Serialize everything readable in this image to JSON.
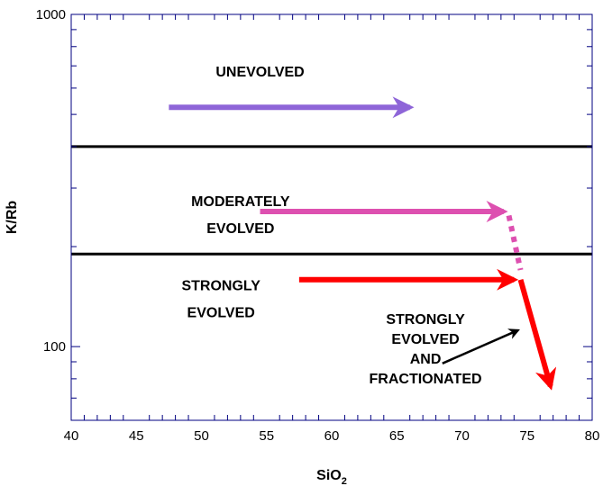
{
  "chart_data": {
    "type": "line",
    "title": "",
    "xlabel": {
      "main": "SiO",
      "subscript": "2"
    },
    "ylabel": "K/Rb",
    "xlim": [
      40,
      80
    ],
    "ylim": [
      60,
      1000
    ],
    "yscale": "log",
    "grid": false,
    "x_ticks": [
      "40",
      "45",
      "50",
      "55",
      "60",
      "65",
      "70",
      "75",
      "80"
    ],
    "y_ticks": [
      "100",
      "1000"
    ],
    "boundaries": [
      {
        "y": 400,
        "color": "#000000"
      },
      {
        "y": 190,
        "color": "#000000"
      }
    ],
    "fields": [
      {
        "lines": [
          "UNEVOLVED"
        ],
        "x": 54.5,
        "y": 650
      },
      {
        "lines": [
          "MODERATELY",
          "EVOLVED"
        ],
        "x": 53,
        "y": 265
      },
      {
        "lines": [
          "STRONGLY",
          "EVOLVED"
        ],
        "x": 51.5,
        "y": 148
      }
    ],
    "series": [
      {
        "color": "#8e65d8",
        "points": [
          [
            47.5,
            525
          ],
          [
            66,
            525
          ]
        ],
        "style": "arrow"
      },
      {
        "color": "#dd50b0",
        "points": [
          [
            54.5,
            255
          ],
          [
            73.2,
            255
          ]
        ],
        "style": "arrow"
      },
      {
        "color": "#dd50b0",
        "points": [
          [
            73.6,
            248
          ],
          [
            74.5,
            170
          ]
        ],
        "style": "dotted"
      },
      {
        "color": "#ff0000",
        "points": [
          [
            57.5,
            159
          ],
          [
            74.0,
            159
          ]
        ],
        "style": "arrow"
      },
      {
        "color": "#ff0000",
        "points": [
          [
            74.5,
            159
          ],
          [
            76.8,
            76
          ]
        ],
        "style": "arrow"
      }
    ],
    "annotations": [
      {
        "lines": [
          "STRONGLY",
          "EVOLVED",
          "AND",
          "FRACTIONATED"
        ],
        "x": 67.2,
        "y": 100,
        "pointer": [
          [
            68.5,
            89
          ],
          [
            74.3,
            112
          ]
        ]
      }
    ],
    "colors": {
      "axis": "#000080",
      "boundary": "#000000"
    }
  }
}
